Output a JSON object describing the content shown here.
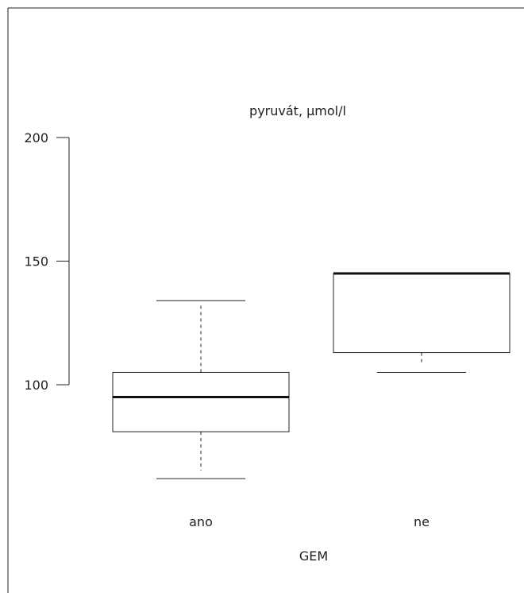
{
  "chart_data": {
    "type": "boxplot",
    "title": "pyruvát, µmol/l",
    "xlabel": "GEM",
    "ylabel": "",
    "yticks": [
      100,
      150,
      200
    ],
    "ylim": [
      50,
      200
    ],
    "categories": [
      "ano",
      "ne"
    ],
    "boxes": [
      {
        "category": "ano",
        "whisker_low": 62,
        "q1": 81,
        "median": 95,
        "q3": 105,
        "whisker_high": 134
      },
      {
        "category": "ne",
        "whisker_low": 105,
        "q1": 113,
        "median": 145,
        "q3": 145,
        "whisker_high": 145
      }
    ],
    "grid": false,
    "colors": {
      "lines": "#222222",
      "median": "#111111",
      "background": "#ffffff"
    }
  }
}
